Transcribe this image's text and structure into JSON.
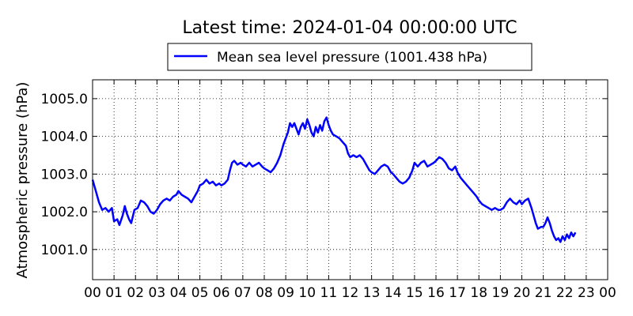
{
  "chart_data": {
    "type": "line",
    "title": "Latest time: 2024-01-04 00:00:00 UTC",
    "xlabel": "",
    "ylabel": "Atmospheric pressure (hPa)",
    "xlim": [
      0,
      24
    ],
    "ylim": [
      1000.2,
      1005.5
    ],
    "x_ticks": [
      "00",
      "01",
      "02",
      "03",
      "04",
      "05",
      "06",
      "07",
      "08",
      "09",
      "10",
      "11",
      "12",
      "13",
      "14",
      "15",
      "16",
      "17",
      "18",
      "19",
      "20",
      "21",
      "22",
      "23",
      "00"
    ],
    "y_ticks": [
      "1001.0",
      "1002.0",
      "1003.0",
      "1004.0",
      "1005.0"
    ],
    "grid": true,
    "legend_position": "top-center",
    "series": [
      {
        "name": "Mean sea level pressure (1001.438 hPa)",
        "color": "#0000ff",
        "points": [
          [
            0.0,
            1002.85
          ],
          [
            0.15,
            1002.55
          ],
          [
            0.3,
            1002.25
          ],
          [
            0.45,
            1002.05
          ],
          [
            0.6,
            1002.1
          ],
          [
            0.75,
            1002.0
          ],
          [
            0.9,
            1002.1
          ],
          [
            1.0,
            1001.75
          ],
          [
            1.15,
            1001.8
          ],
          [
            1.25,
            1001.65
          ],
          [
            1.4,
            1001.9
          ],
          [
            1.5,
            1002.15
          ],
          [
            1.6,
            1001.95
          ],
          [
            1.7,
            1001.8
          ],
          [
            1.8,
            1001.7
          ],
          [
            1.95,
            1002.05
          ],
          [
            2.1,
            1002.1
          ],
          [
            2.25,
            1002.3
          ],
          [
            2.4,
            1002.25
          ],
          [
            2.55,
            1002.15
          ],
          [
            2.7,
            1002.0
          ],
          [
            2.85,
            1001.95
          ],
          [
            3.0,
            1002.05
          ],
          [
            3.15,
            1002.2
          ],
          [
            3.3,
            1002.3
          ],
          [
            3.45,
            1002.35
          ],
          [
            3.6,
            1002.3
          ],
          [
            3.75,
            1002.4
          ],
          [
            3.9,
            1002.45
          ],
          [
            4.0,
            1002.55
          ],
          [
            4.15,
            1002.45
          ],
          [
            4.3,
            1002.4
          ],
          [
            4.45,
            1002.35
          ],
          [
            4.6,
            1002.25
          ],
          [
            4.75,
            1002.4
          ],
          [
            4.9,
            1002.55
          ],
          [
            5.0,
            1002.7
          ],
          [
            5.15,
            1002.75
          ],
          [
            5.3,
            1002.85
          ],
          [
            5.45,
            1002.75
          ],
          [
            5.6,
            1002.8
          ],
          [
            5.75,
            1002.7
          ],
          [
            5.9,
            1002.75
          ],
          [
            6.0,
            1002.7
          ],
          [
            6.15,
            1002.75
          ],
          [
            6.3,
            1002.85
          ],
          [
            6.4,
            1003.1
          ],
          [
            6.5,
            1003.3
          ],
          [
            6.6,
            1003.35
          ],
          [
            6.75,
            1003.25
          ],
          [
            6.9,
            1003.3
          ],
          [
            7.0,
            1003.25
          ],
          [
            7.15,
            1003.2
          ],
          [
            7.3,
            1003.3
          ],
          [
            7.45,
            1003.2
          ],
          [
            7.6,
            1003.25
          ],
          [
            7.75,
            1003.3
          ],
          [
            7.9,
            1003.2
          ],
          [
            8.0,
            1003.15
          ],
          [
            8.15,
            1003.1
          ],
          [
            8.3,
            1003.05
          ],
          [
            8.45,
            1003.15
          ],
          [
            8.6,
            1003.3
          ],
          [
            8.75,
            1003.5
          ],
          [
            8.9,
            1003.8
          ],
          [
            9.0,
            1003.95
          ],
          [
            9.1,
            1004.1
          ],
          [
            9.2,
            1004.35
          ],
          [
            9.3,
            1004.25
          ],
          [
            9.4,
            1004.35
          ],
          [
            9.5,
            1004.2
          ],
          [
            9.6,
            1004.05
          ],
          [
            9.7,
            1004.25
          ],
          [
            9.8,
            1004.35
          ],
          [
            9.9,
            1004.2
          ],
          [
            10.0,
            1004.45
          ],
          [
            10.1,
            1004.3
          ],
          [
            10.2,
            1004.1
          ],
          [
            10.3,
            1004.0
          ],
          [
            10.4,
            1004.25
          ],
          [
            10.5,
            1004.1
          ],
          [
            10.6,
            1004.3
          ],
          [
            10.7,
            1004.15
          ],
          [
            10.8,
            1004.4
          ],
          [
            10.9,
            1004.5
          ],
          [
            11.0,
            1004.3
          ],
          [
            11.1,
            1004.15
          ],
          [
            11.2,
            1004.05
          ],
          [
            11.35,
            1004.0
          ],
          [
            11.5,
            1003.95
          ],
          [
            11.65,
            1003.85
          ],
          [
            11.8,
            1003.75
          ],
          [
            11.9,
            1003.55
          ],
          [
            12.0,
            1003.45
          ],
          [
            12.15,
            1003.5
          ],
          [
            12.3,
            1003.45
          ],
          [
            12.45,
            1003.5
          ],
          [
            12.6,
            1003.4
          ],
          [
            12.75,
            1003.25
          ],
          [
            12.9,
            1003.1
          ],
          [
            13.0,
            1003.05
          ],
          [
            13.15,
            1003.0
          ],
          [
            13.3,
            1003.1
          ],
          [
            13.45,
            1003.2
          ],
          [
            13.6,
            1003.25
          ],
          [
            13.75,
            1003.2
          ],
          [
            13.9,
            1003.05
          ],
          [
            14.0,
            1003.0
          ],
          [
            14.15,
            1002.9
          ],
          [
            14.3,
            1002.8
          ],
          [
            14.45,
            1002.75
          ],
          [
            14.6,
            1002.8
          ],
          [
            14.75,
            1002.9
          ],
          [
            14.9,
            1003.1
          ],
          [
            15.0,
            1003.3
          ],
          [
            15.15,
            1003.2
          ],
          [
            15.3,
            1003.3
          ],
          [
            15.45,
            1003.35
          ],
          [
            15.6,
            1003.2
          ],
          [
            15.75,
            1003.25
          ],
          [
            15.9,
            1003.3
          ],
          [
            16.0,
            1003.35
          ],
          [
            16.15,
            1003.45
          ],
          [
            16.3,
            1003.4
          ],
          [
            16.45,
            1003.3
          ],
          [
            16.6,
            1003.15
          ],
          [
            16.75,
            1003.1
          ],
          [
            16.9,
            1003.2
          ],
          [
            17.0,
            1003.05
          ],
          [
            17.15,
            1002.9
          ],
          [
            17.3,
            1002.8
          ],
          [
            17.45,
            1002.7
          ],
          [
            17.6,
            1002.6
          ],
          [
            17.75,
            1002.5
          ],
          [
            17.9,
            1002.4
          ],
          [
            18.0,
            1002.3
          ],
          [
            18.15,
            1002.2
          ],
          [
            18.3,
            1002.15
          ],
          [
            18.45,
            1002.1
          ],
          [
            18.6,
            1002.05
          ],
          [
            18.75,
            1002.1
          ],
          [
            18.9,
            1002.05
          ],
          [
            19.0,
            1002.05
          ],
          [
            19.15,
            1002.1
          ],
          [
            19.3,
            1002.25
          ],
          [
            19.45,
            1002.35
          ],
          [
            19.6,
            1002.25
          ],
          [
            19.75,
            1002.2
          ],
          [
            19.9,
            1002.3
          ],
          [
            20.0,
            1002.2
          ],
          [
            20.15,
            1002.3
          ],
          [
            20.3,
            1002.35
          ],
          [
            20.45,
            1002.1
          ],
          [
            20.55,
            1001.9
          ],
          [
            20.65,
            1001.7
          ],
          [
            20.75,
            1001.55
          ],
          [
            20.9,
            1001.6
          ],
          [
            21.0,
            1001.6
          ],
          [
            21.1,
            1001.7
          ],
          [
            21.2,
            1001.85
          ],
          [
            21.3,
            1001.7
          ],
          [
            21.4,
            1001.5
          ],
          [
            21.5,
            1001.35
          ],
          [
            21.6,
            1001.25
          ],
          [
            21.7,
            1001.3
          ],
          [
            21.8,
            1001.2
          ],
          [
            21.9,
            1001.35
          ],
          [
            22.0,
            1001.25
          ],
          [
            22.1,
            1001.4
          ],
          [
            22.2,
            1001.3
          ],
          [
            22.3,
            1001.45
          ],
          [
            22.4,
            1001.35
          ],
          [
            22.5,
            1001.45
          ]
        ]
      }
    ]
  }
}
